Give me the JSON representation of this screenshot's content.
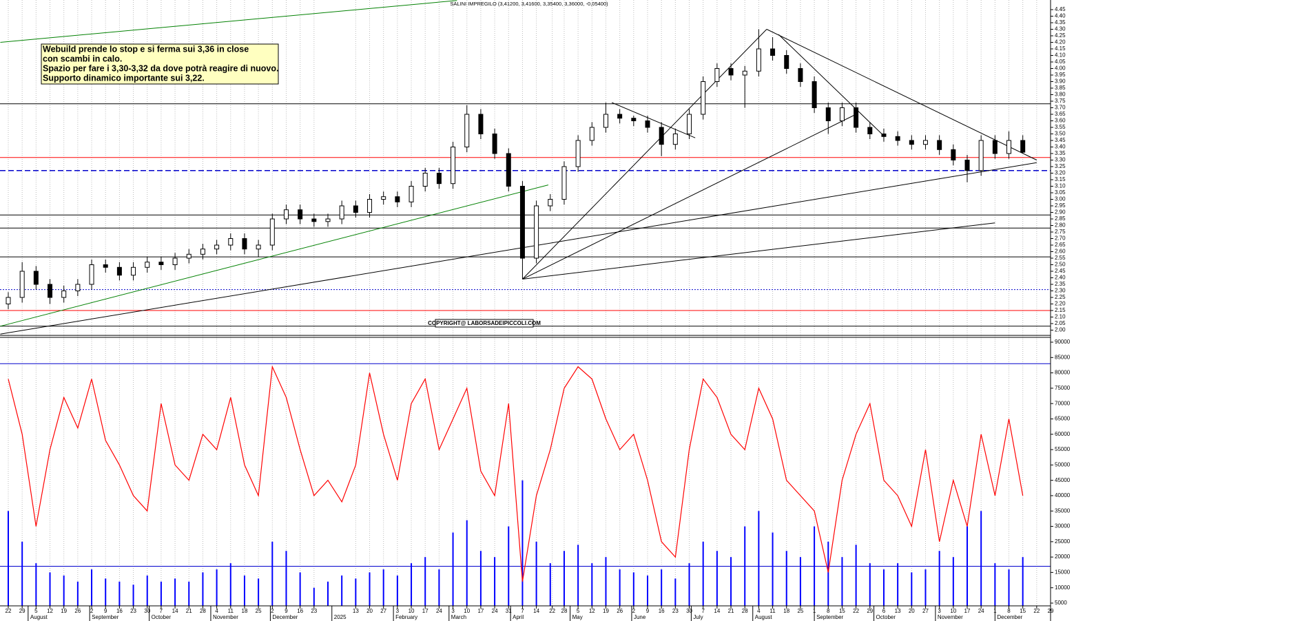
{
  "chart_data": {
    "type": "candlestick",
    "title": "SALINI IMPREGILO (3,41200, 3,41600, 3,35400, 3,36000, -0,05400)",
    "annotation": [
      "Webuild prende lo stop e si ferma sui 3,36 in close",
      "con scambi in calo.",
      "Spazio per fare i 3,30-3,32 da dove potrà reagire di nuovo.",
      "Supporto dinamico importante  sui 3,22."
    ],
    "copyright": "COPYRIGHT@ LABORSADEIPICCOLI.COM",
    "x": [
      "2024-07-22",
      "2024-07-29",
      "2024-08-05",
      "2024-08-12",
      "2024-08-19",
      "2024-08-26",
      "2024-09-02",
      "2024-09-09",
      "2024-09-16",
      "2024-09-23",
      "2024-09-30",
      "2024-10-07",
      "2024-10-14",
      "2024-10-21",
      "2024-10-28",
      "2024-11-04",
      "2024-11-11",
      "2024-11-18",
      "2024-11-25",
      "2024-12-02",
      "2024-12-09",
      "2024-12-16",
      "2024-12-23",
      "2024-12-30",
      "2025-01-06",
      "2025-01-13",
      "2025-01-20",
      "2025-01-27",
      "2025-02-03",
      "2025-02-10",
      "2025-02-17",
      "2025-02-24",
      "2025-03-03",
      "2025-03-10",
      "2025-03-17",
      "2025-03-24",
      "2025-03-31",
      "2025-04-07",
      "2025-04-14",
      "2025-04-21",
      "2025-04-28",
      "2025-05-05",
      "2025-05-12",
      "2025-05-19",
      "2025-05-26",
      "2025-06-02",
      "2025-06-09",
      "2025-06-16",
      "2025-06-23",
      "2025-06-30",
      "2025-07-07",
      "2025-07-14",
      "2025-07-21",
      "2025-07-28",
      "2025-08-04",
      "2025-08-11",
      "2025-08-18",
      "2025-08-25",
      "2025-09-01",
      "2025-09-08",
      "2025-09-15",
      "2025-09-22",
      "2025-09-29",
      "2025-10-06",
      "2025-10-13",
      "2025-10-20",
      "2025-10-27",
      "2025-11-03",
      "2025-11-10",
      "2025-11-17",
      "2025-11-24",
      "2025-12-01",
      "2025-12-08",
      "2025-12-15"
    ],
    "open": [
      2.2,
      2.25,
      2.45,
      2.35,
      2.25,
      2.3,
      2.35,
      2.5,
      2.48,
      2.42,
      2.48,
      2.52,
      2.5,
      2.55,
      2.58,
      2.62,
      2.65,
      2.7,
      2.62,
      2.65,
      2.85,
      2.92,
      2.85,
      2.83,
      2.85,
      2.95,
      2.9,
      3.0,
      3.02,
      2.98,
      3.1,
      3.2,
      3.12,
      3.4,
      3.65,
      3.5,
      3.35,
      3.1,
      2.55,
      2.95,
      3.0,
      3.25,
      3.45,
      3.55,
      3.65,
      3.62,
      3.6,
      3.55,
      3.42,
      3.5,
      3.65,
      3.9,
      4.0,
      3.95,
      3.98,
      4.15,
      4.1,
      4.0,
      3.9,
      3.7,
      3.6,
      3.7,
      3.55,
      3.5,
      3.48,
      3.45,
      3.42,
      3.45,
      3.38,
      3.3,
      3.22,
      3.45,
      3.35,
      3.45
    ],
    "high": [
      2.29,
      2.52,
      2.49,
      2.39,
      2.34,
      2.39,
      2.54,
      2.54,
      2.52,
      2.52,
      2.56,
      2.56,
      2.59,
      2.62,
      2.66,
      2.69,
      2.74,
      2.74,
      2.69,
      2.89,
      2.96,
      2.96,
      2.89,
      2.89,
      2.99,
      2.99,
      3.04,
      3.06,
      3.06,
      3.14,
      3.24,
      3.24,
      3.44,
      3.72,
      3.69,
      3.54,
      3.39,
      3.14,
      2.99,
      3.04,
      3.29,
      3.49,
      3.59,
      3.74,
      3.69,
      3.64,
      3.64,
      3.59,
      3.54,
      3.69,
      3.94,
      4.04,
      4.04,
      4.02,
      4.3,
      4.24,
      4.14,
      4.04,
      3.94,
      3.74,
      3.74,
      3.74,
      3.59,
      3.54,
      3.52,
      3.49,
      3.49,
      3.49,
      3.42,
      3.34,
      3.49,
      3.49,
      3.52,
      3.49
    ],
    "low": [
      2.16,
      2.21,
      2.31,
      2.2,
      2.21,
      2.26,
      2.31,
      2.44,
      2.38,
      2.38,
      2.44,
      2.46,
      2.46,
      2.51,
      2.54,
      2.58,
      2.61,
      2.58,
      2.56,
      2.61,
      2.81,
      2.81,
      2.79,
      2.79,
      2.81,
      2.86,
      2.86,
      2.96,
      2.94,
      2.94,
      3.06,
      3.08,
      3.08,
      3.36,
      3.46,
      3.31,
      3.06,
      2.39,
      2.51,
      2.91,
      2.96,
      3.21,
      3.41,
      3.51,
      3.58,
      3.56,
      3.51,
      3.33,
      3.38,
      3.46,
      3.61,
      3.86,
      3.91,
      3.7,
      3.94,
      4.06,
      3.96,
      3.86,
      3.66,
      3.5,
      3.56,
      3.51,
      3.46,
      3.44,
      3.41,
      3.38,
      3.38,
      3.34,
      3.26,
      3.13,
      3.18,
      3.31,
      3.31,
      3.35
    ],
    "close": [
      2.25,
      2.45,
      2.35,
      2.25,
      2.3,
      2.35,
      2.5,
      2.48,
      2.42,
      2.48,
      2.52,
      2.5,
      2.55,
      2.58,
      2.62,
      2.65,
      2.7,
      2.62,
      2.65,
      2.85,
      2.92,
      2.85,
      2.83,
      2.85,
      2.95,
      2.9,
      3.0,
      3.02,
      2.98,
      3.1,
      3.2,
      3.12,
      3.4,
      3.65,
      3.5,
      3.35,
      3.1,
      2.55,
      2.95,
      3.0,
      3.25,
      3.45,
      3.55,
      3.65,
      3.62,
      3.6,
      3.55,
      3.42,
      3.5,
      3.65,
      3.9,
      4.0,
      3.95,
      3.98,
      4.15,
      4.1,
      4.0,
      3.9,
      3.7,
      3.6,
      3.7,
      3.55,
      3.5,
      3.48,
      3.45,
      3.42,
      3.45,
      3.38,
      3.3,
      3.22,
      3.45,
      3.35,
      3.45,
      3.36
    ],
    "volume": {
      "color": "#0000ff",
      "values": [
        35000,
        25000,
        18000,
        15000,
        14000,
        12000,
        16000,
        13000,
        12000,
        11000,
        14000,
        12000,
        13000,
        12000,
        15000,
        16000,
        18000,
        14000,
        13000,
        25000,
        22000,
        15000,
        10000,
        12000,
        14000,
        13000,
        15000,
        16000,
        14000,
        18000,
        20000,
        16000,
        28000,
        32000,
        22000,
        20000,
        30000,
        45000,
        25000,
        18000,
        22000,
        24000,
        18000,
        20000,
        16000,
        15000,
        14000,
        16000,
        13000,
        18000,
        25000,
        22000,
        20000,
        30000,
        35000,
        28000,
        22000,
        20000,
        30000,
        25000,
        20000,
        24000,
        18000,
        16000,
        18000,
        15000,
        16000,
        22000,
        20000,
        30000,
        35000,
        18000,
        16000,
        20000
      ]
    },
    "oscillator": {
      "color": "#ff0000",
      "values": [
        78000,
        60000,
        30000,
        55000,
        72000,
        62000,
        78000,
        58000,
        50000,
        40000,
        35000,
        70000,
        50000,
        45000,
        60000,
        55000,
        72000,
        50000,
        40000,
        82000,
        72000,
        55000,
        40000,
        45000,
        38000,
        50000,
        80000,
        60000,
        45000,
        70000,
        78000,
        55000,
        65000,
        75000,
        48000,
        40000,
        70000,
        12000,
        40000,
        55000,
        75000,
        82000,
        78000,
        65000,
        55000,
        60000,
        45000,
        25000,
        20000,
        55000,
        78000,
        72000,
        60000,
        55000,
        75000,
        65000,
        45000,
        40000,
        35000,
        15000,
        45000,
        60000,
        70000,
        45000,
        40000,
        30000,
        55000,
        25000,
        45000,
        30000,
        60000,
        40000,
        65000,
        40000
      ]
    },
    "ylim": [
      2.0,
      4.45
    ],
    "yticks": [
      {
        "value": 2.0,
        "label": "2.00"
      },
      2.05,
      {
        "value": 2.1,
        "label": "2.10"
      },
      2.15,
      {
        "value": 2.2,
        "label": "2.20"
      },
      2.25,
      {
        "value": 2.3,
        "label": "2.30"
      },
      2.35,
      {
        "value": 2.4,
        "label": "2.40"
      },
      2.45,
      {
        "value": 2.5,
        "label": "2.50"
      },
      2.55,
      {
        "value": 2.6,
        "label": "2.60"
      },
      2.65,
      {
        "value": 2.7,
        "label": "2.70"
      },
      2.75,
      {
        "value": 2.8,
        "label": "2.80"
      },
      2.85,
      {
        "value": 2.9,
        "label": "2.90"
      },
      2.95,
      {
        "value": 3.0,
        "label": "3.00"
      },
      3.05,
      {
        "value": 3.1,
        "label": "3.10"
      },
      3.15,
      {
        "value": 3.2,
        "label": "3.20"
      },
      3.25,
      {
        "value": 3.3,
        "label": "3.30"
      },
      3.35,
      {
        "value": 3.4,
        "label": "3.40"
      },
      3.45,
      {
        "value": 3.5,
        "label": "3.50"
      },
      3.55,
      {
        "value": 3.6,
        "label": "3.60"
      },
      3.65,
      {
        "value": 3.7,
        "label": "3.70"
      },
      3.75,
      {
        "value": 3.8,
        "label": "3.80"
      },
      3.85,
      {
        "value": 3.9,
        "label": "3.90"
      },
      3.95,
      {
        "value": 4.0,
        "label": "4.00"
      },
      4.05,
      {
        "value": 4.1,
        "label": "4.10"
      },
      4.15,
      {
        "value": 4.2,
        "label": "4.20"
      },
      4.25,
      {
        "value": 4.3,
        "label": "4.30"
      },
      4.35,
      {
        "value": 4.4,
        "label": "4.40"
      },
      4.45
    ],
    "y2lim": [
      5000,
      90000
    ],
    "y2ticks": [
      5000,
      10000,
      15000,
      20000,
      25000,
      30000,
      35000,
      40000,
      45000,
      50000,
      55000,
      60000,
      65000,
      70000,
      75000,
      80000,
      85000,
      90000
    ],
    "hlines": [
      {
        "value": 3.73,
        "color": "#000000",
        "style": "solid"
      },
      {
        "value": 3.32,
        "color": "#ff0000",
        "style": "solid"
      },
      {
        "value": 3.22,
        "color": "#0000cc",
        "style": "dashed"
      },
      {
        "value": 2.88,
        "color": "#000000",
        "style": "solid"
      },
      {
        "value": 2.78,
        "color": "#000000",
        "style": "solid"
      },
      {
        "value": 2.56,
        "color": "#000000",
        "style": "solid"
      },
      {
        "value": 2.31,
        "color": "#0000cc",
        "style": "dotted"
      },
      {
        "value": 2.15,
        "color": "#ff0000",
        "style": "solid"
      },
      {
        "value": 2.03,
        "color": "#000000",
        "style": "solid"
      },
      {
        "value": 1.96,
        "color": "#000000",
        "style": "solid"
      }
    ],
    "vol_hlines": [
      {
        "value": 83000,
        "color": "#0000cc"
      },
      {
        "value": 17000,
        "color": "#0000cc"
      }
    ],
    "trendlines": [
      {
        "color": "#008000",
        "points": [
          [
            "2024-07-18",
            4.2
          ],
          [
            "2025-03-05",
            4.52
          ]
        ]
      },
      {
        "color": "#008000",
        "points": [
          [
            "2024-07-18",
            2.03
          ],
          [
            "2025-04-20",
            3.11
          ]
        ]
      },
      {
        "color": "#000000",
        "points": [
          [
            "2024-07-18",
            1.97
          ],
          [
            "2025-12-22",
            3.28
          ]
        ]
      },
      {
        "color": "#000000",
        "points": [
          [
            "2025-04-07",
            2.39
          ],
          [
            "2025-08-08",
            4.3
          ]
        ]
      },
      {
        "color": "#000000",
        "points": [
          [
            "2025-04-07",
            2.39
          ],
          [
            "2025-09-22",
            3.65
          ]
        ]
      },
      {
        "color": "#000000",
        "points": [
          [
            "2025-04-07",
            2.39
          ],
          [
            "2025-12-01",
            2.82
          ]
        ]
      },
      {
        "color": "#000000",
        "points": [
          [
            "2025-08-08",
            4.3
          ],
          [
            "2025-12-22",
            3.3
          ]
        ]
      },
      {
        "color": "#000000",
        "points": [
          [
            "2025-08-14",
            4.26
          ],
          [
            "2025-10-05",
            3.5
          ]
        ]
      },
      {
        "color": "#000000",
        "points": [
          [
            "2025-05-22",
            3.74
          ],
          [
            "2025-07-03",
            3.47
          ]
        ]
      }
    ],
    "xticks": [
      {
        "value": "2024-07-22",
        "label": "22"
      },
      {
        "value": "2024-07-29",
        "label": "29"
      },
      {
        "value": "2024-08-05",
        "label": "5"
      },
      {
        "value": "2024-08-12",
        "label": "12"
      },
      {
        "value": "2024-08-19",
        "label": "19"
      },
      {
        "value": "2024-08-26",
        "label": "26"
      },
      {
        "value": "2024-09-02",
        "label": "2"
      },
      {
        "value": "2024-09-09",
        "label": "9"
      },
      {
        "value": "2024-09-16",
        "label": "16"
      },
      {
        "value": "2024-09-23",
        "label": "23"
      },
      {
        "value": "2024-09-30",
        "label": "30"
      },
      {
        "value": "2024-10-07",
        "label": "7"
      },
      {
        "value": "2024-10-14",
        "label": "14"
      },
      {
        "value": "2024-10-21",
        "label": "21"
      },
      {
        "value": "2024-10-28",
        "label": "28"
      },
      {
        "value": "2024-11-04",
        "label": "4"
      },
      {
        "value": "2024-11-11",
        "label": "11"
      },
      {
        "value": "2024-11-18",
        "label": "18"
      },
      {
        "value": "2024-11-25",
        "label": "25"
      },
      {
        "value": "2024-12-02",
        "label": "2"
      },
      {
        "value": "2024-12-09",
        "label": "9"
      },
      {
        "value": "2024-12-16",
        "label": "16"
      },
      {
        "value": "2024-12-23",
        "label": "23"
      },
      {
        "value": "2025-01-13",
        "label": "13"
      },
      {
        "value": "2025-01-20",
        "label": "20"
      },
      {
        "value": "2025-01-27",
        "label": "27"
      },
      {
        "value": "2025-02-03",
        "label": "3"
      },
      {
        "value": "2025-02-10",
        "label": "10"
      },
      {
        "value": "2025-02-17",
        "label": "17"
      },
      {
        "value": "2025-02-24",
        "label": "24"
      },
      {
        "value": "2025-03-03",
        "label": "3"
      },
      {
        "value": "2025-03-10",
        "label": "10"
      },
      {
        "value": "2025-03-17",
        "label": "17"
      },
      {
        "value": "2025-03-24",
        "label": "24"
      },
      {
        "value": "2025-03-31",
        "label": "31"
      },
      {
        "value": "2025-04-07",
        "label": "7"
      },
      {
        "value": "2025-04-14",
        "label": "14"
      },
      {
        "value": "2025-04-22",
        "label": "22"
      },
      {
        "value": "2025-04-28",
        "label": "28"
      },
      {
        "value": "2025-05-05",
        "label": "5"
      },
      {
        "value": "2025-05-12",
        "label": "12"
      },
      {
        "value": "2025-05-19",
        "label": "19"
      },
      {
        "value": "2025-05-26",
        "label": "26"
      },
      {
        "value": "2025-06-02",
        "label": "2"
      },
      {
        "value": "2025-06-09",
        "label": "9"
      },
      {
        "value": "2025-06-16",
        "label": "16"
      },
      {
        "value": "2025-06-23",
        "label": "23"
      },
      {
        "value": "2025-06-30",
        "label": "30"
      },
      {
        "value": "2025-07-07",
        "label": "7"
      },
      {
        "value": "2025-07-14",
        "label": "14"
      },
      {
        "value": "2025-07-21",
        "label": "21"
      },
      {
        "value": "2025-07-28",
        "label": "28"
      },
      {
        "value": "2025-08-04",
        "label": "4"
      },
      {
        "value": "2025-08-11",
        "label": "11"
      },
      {
        "value": "2025-08-18",
        "label": "18"
      },
      {
        "value": "2025-08-25",
        "label": "25"
      },
      {
        "value": "2025-09-01",
        "label": "1"
      },
      {
        "value": "2025-09-08",
        "label": "8"
      },
      {
        "value": "2025-09-15",
        "label": "15"
      },
      {
        "value": "2025-09-22",
        "label": "22"
      },
      {
        "value": "2025-09-29",
        "label": "29"
      },
      {
        "value": "2025-10-06",
        "label": "6"
      },
      {
        "value": "2025-10-13",
        "label": "13"
      },
      {
        "value": "2025-10-20",
        "label": "20"
      },
      {
        "value": "2025-10-27",
        "label": "27"
      },
      {
        "value": "2025-11-03",
        "label": "3"
      },
      {
        "value": "2025-11-10",
        "label": "10"
      },
      {
        "value": "2025-11-17",
        "label": "17"
      },
      {
        "value": "2025-11-24",
        "label": "24"
      },
      {
        "value": "2025-12-01",
        "label": "1"
      },
      {
        "value": "2025-12-08",
        "label": "8"
      },
      {
        "value": "2025-12-15",
        "label": "15"
      },
      {
        "value": "2025-12-22",
        "label": "22"
      },
      {
        "value": "2025-12-29",
        "label": "29"
      }
    ],
    "months": [
      {
        "value": "2024-08-01",
        "label": "August"
      },
      {
        "value": "2024-09-01",
        "label": "September"
      },
      {
        "value": "2024-10-01",
        "label": "October"
      },
      {
        "value": "2024-11-01",
        "label": "November"
      },
      {
        "value": "2024-12-01",
        "label": "December"
      },
      {
        "value": "2025-01-01",
        "label": "2025"
      },
      {
        "value": "2025-02-01",
        "label": "February"
      },
      {
        "value": "2025-03-01",
        "label": "March"
      },
      {
        "value": "2025-04-01",
        "label": "April"
      },
      {
        "value": "2025-05-01",
        "label": "May"
      },
      {
        "value": "2025-06-01",
        "label": "June"
      },
      {
        "value": "2025-07-01",
        "label": "July"
      },
      {
        "value": "2025-08-01",
        "label": "August"
      },
      {
        "value": "2025-09-01",
        "label": "September"
      },
      {
        "value": "2025-10-01",
        "label": "October"
      },
      {
        "value": "2025-11-01",
        "label": "November"
      },
      {
        "value": "2025-12-01",
        "label": "December"
      }
    ],
    "grid": true
  }
}
